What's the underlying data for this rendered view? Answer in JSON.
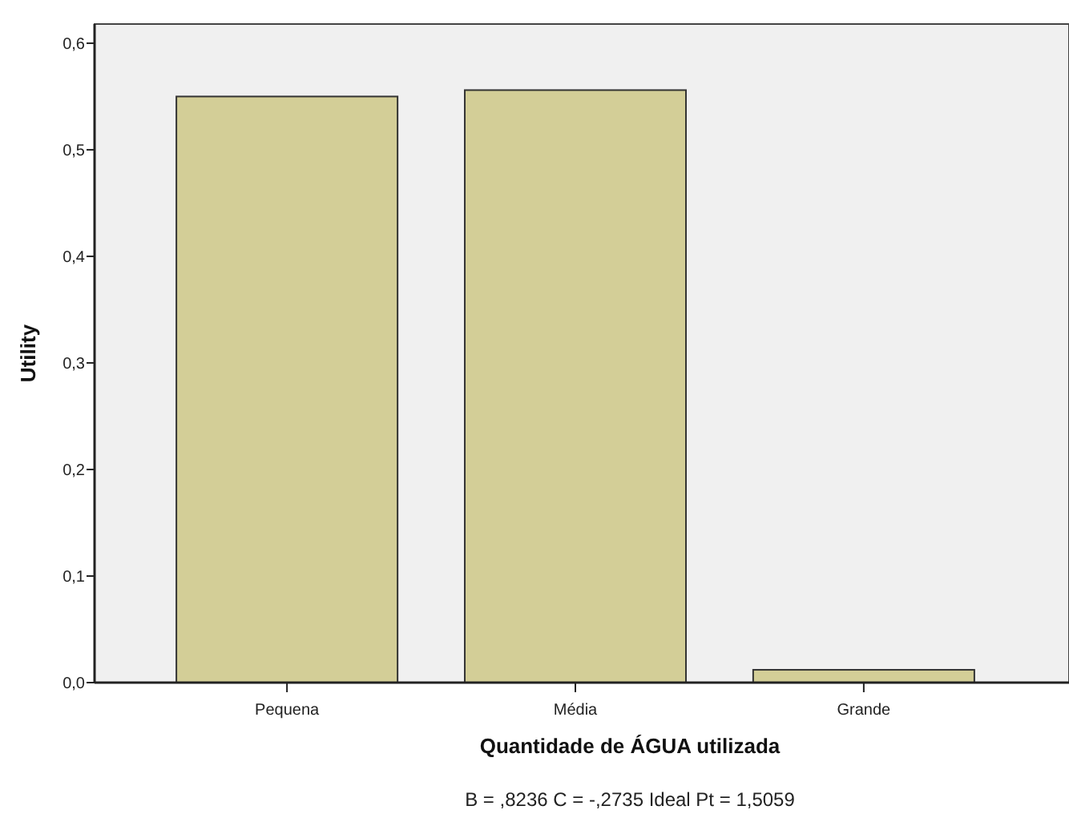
{
  "chart_data": {
    "type": "bar",
    "xlabel": "Quantidade de ÁGUA utilizada",
    "ylabel": "Utility",
    "annotations": [
      "B = ,8236 C = -,2735 Ideal Pt = 1,5059"
    ],
    "categories": [
      "Pequena",
      "Média",
      "Grande"
    ],
    "values": [
      0.55,
      0.556,
      0.012
    ],
    "color": "#d3ce97",
    "ylim": [
      0,
      0.618
    ],
    "yticks": [
      {
        "value": 0,
        "label": "0,0"
      },
      {
        "value": 0.1,
        "label": "0,1"
      },
      {
        "value": 0.2,
        "label": "0,2"
      },
      {
        "value": 0.3,
        "label": "0,3"
      },
      {
        "value": 0.4,
        "label": "0,4"
      },
      {
        "value": 0.5,
        "label": "0,5"
      },
      {
        "value": 0.6,
        "label": "0,6"
      }
    ],
    "grid": false
  }
}
